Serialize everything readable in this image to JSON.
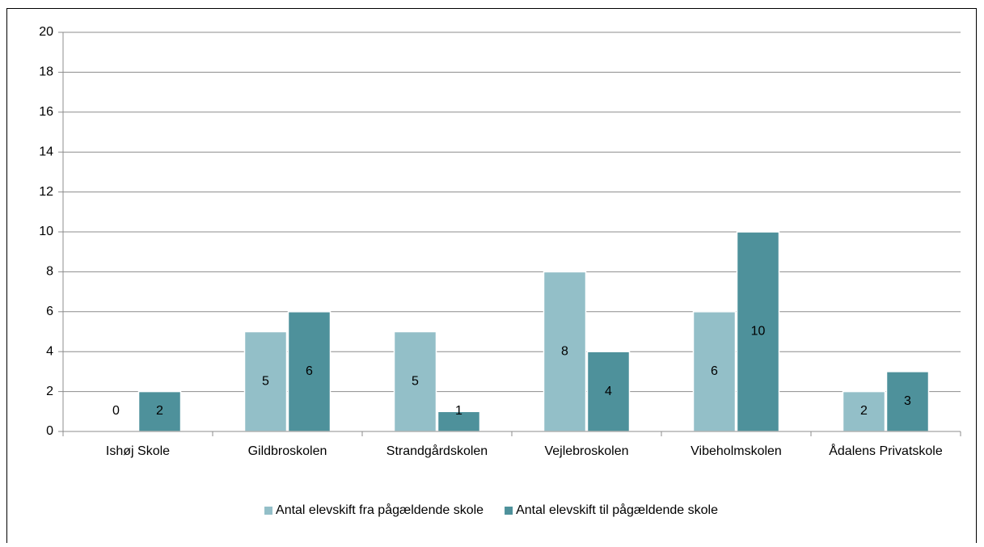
{
  "chart_data": {
    "type": "bar",
    "categories": [
      "Ishøj Skole",
      "Gildbroskolen",
      "Strandgårdskolen",
      "Vejlebroskolen",
      "Vibeholmskolen",
      "Ådalens Privatskole"
    ],
    "series": [
      {
        "name": "Antal elevskift fra pågældende skole",
        "color": "#93bfc8",
        "values": [
          0,
          5,
          5,
          8,
          6,
          2
        ]
      },
      {
        "name": "Antal elevskift til pågældende skole",
        "color": "#4e919b",
        "values": [
          2,
          6,
          1,
          4,
          10,
          3
        ]
      }
    ],
    "ylim": [
      0,
      20
    ],
    "yticks": [
      0,
      2,
      4,
      6,
      8,
      10,
      12,
      14,
      16,
      18,
      20
    ],
    "grid": true,
    "legend": "bottom"
  }
}
